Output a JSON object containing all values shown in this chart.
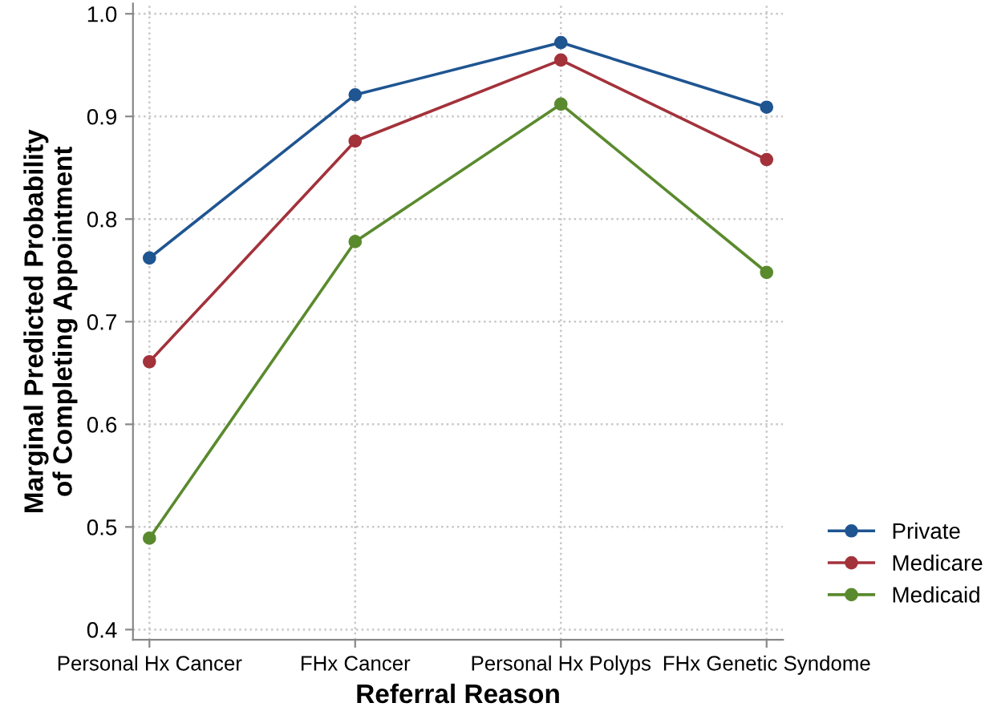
{
  "chart_data": {
    "type": "line",
    "xlabel": "Referral Reason",
    "ylabel": "Marginal Predicted Probability\nof Completing Appointment",
    "categories": [
      "Personal Hx Cancer",
      "FHx Cancer",
      "Personal Hx Polyps",
      "FHx Genetic Syndome"
    ],
    "series": [
      {
        "name": "Private",
        "color": "#1f5591",
        "values": [
          0.762,
          0.921,
          0.972,
          0.909
        ]
      },
      {
        "name": "Medicare",
        "color": "#a3323b",
        "values": [
          0.661,
          0.876,
          0.955,
          0.858
        ]
      },
      {
        "name": "Medicaid",
        "color": "#5a8a2e",
        "values": [
          0.489,
          0.778,
          0.912,
          0.748
        ]
      }
    ],
    "ylim": [
      0.39,
      1.01
    ],
    "yticks": [
      {
        "value": 0.4,
        "label": "0.4"
      },
      {
        "value": 0.5,
        "label": "0.5"
      },
      {
        "value": 0.6,
        "label": "0.6"
      },
      {
        "value": 0.7,
        "label": "0.7"
      },
      {
        "value": 0.8,
        "label": "0.8"
      },
      {
        "value": 0.9,
        "label": "0.9"
      },
      {
        "value": 1.0,
        "label": "1.0"
      }
    ],
    "grid": true,
    "legend": "bottom right",
    "marker": "circle",
    "line_style": "solid"
  }
}
